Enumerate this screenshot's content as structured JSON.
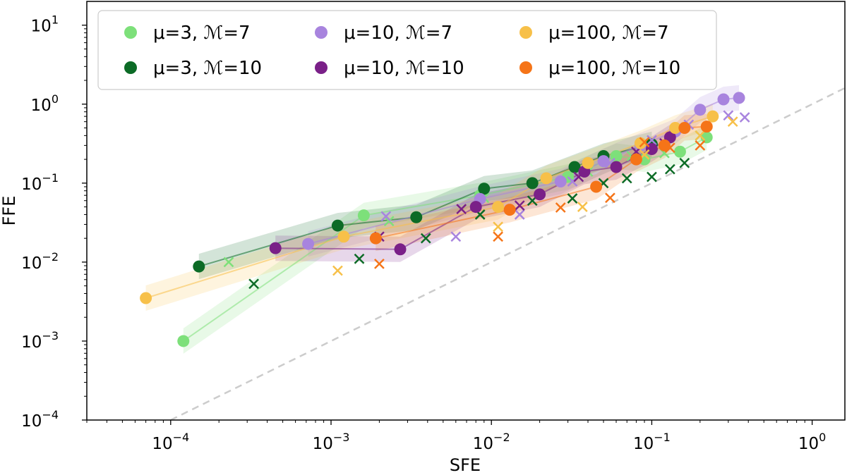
{
  "chart_data": {
    "type": "scatter",
    "xlabel": "SFE",
    "ylabel": "FFE",
    "xscale": "log",
    "yscale": "log",
    "xlim": [
      3e-05,
      1.6
    ],
    "ylim": [
      0.0001,
      20
    ],
    "x_ticks": [
      {
        "value": 0.0001,
        "base": "10",
        "exp": "−4"
      },
      {
        "value": 0.001,
        "base": "10",
        "exp": "−3"
      },
      {
        "value": 0.01,
        "base": "10",
        "exp": "−2"
      },
      {
        "value": 0.1,
        "base": "10",
        "exp": "−1"
      },
      {
        "value": 1,
        "base": "10",
        "exp": "0"
      }
    ],
    "y_ticks": [
      {
        "value": 0.0001,
        "base": "10",
        "exp": "−4"
      },
      {
        "value": 0.001,
        "base": "10",
        "exp": "−3"
      },
      {
        "value": 0.01,
        "base": "10",
        "exp": "−2"
      },
      {
        "value": 0.1,
        "base": "10",
        "exp": "−1"
      },
      {
        "value": 1,
        "base": "10",
        "exp": "0"
      },
      {
        "value": 10,
        "base": "10",
        "exp": "1"
      }
    ],
    "grid": false,
    "legend_placement": "top-left",
    "reference_line": {
      "style": "dashed",
      "color": "#cccccc",
      "x": [
        0.0001,
        1.6
      ],
      "y": [
        0.0001,
        1.6
      ]
    },
    "series": [
      {
        "name": "μ=3, ℳ=7",
        "color": "#7de07a",
        "circles": [
          [
            0.00012,
            0.001
          ],
          [
            0.0016,
            0.039
          ],
          [
            0.0085,
            0.07
          ],
          [
            0.03,
            0.12
          ],
          [
            0.06,
            0.22
          ],
          [
            0.09,
            0.2
          ],
          [
            0.15,
            0.25
          ],
          [
            0.22,
            0.38
          ]
        ],
        "crosses": [
          [
            0.00023,
            0.01
          ],
          [
            0.0023,
            0.033
          ],
          [
            0.009,
            0.065
          ],
          [
            0.04,
            0.14
          ],
          [
            0.075,
            0.22
          ],
          [
            0.12,
            0.24
          ],
          [
            0.2,
            0.4
          ]
        ]
      },
      {
        "name": "μ=3, ℳ=10",
        "color": "#0c6b26",
        "circles": [
          [
            0.00015,
            0.0088
          ],
          [
            0.0011,
            0.029
          ],
          [
            0.0034,
            0.037
          ],
          [
            0.009,
            0.085
          ],
          [
            0.018,
            0.1
          ],
          [
            0.033,
            0.16
          ],
          [
            0.05,
            0.22
          ],
          [
            0.1,
            0.31
          ]
        ],
        "crosses": [
          [
            0.00033,
            0.0053
          ],
          [
            0.0015,
            0.011
          ],
          [
            0.0039,
            0.02
          ],
          [
            0.0085,
            0.04
          ],
          [
            0.018,
            0.06
          ],
          [
            0.032,
            0.064
          ],
          [
            0.05,
            0.1
          ],
          [
            0.07,
            0.115
          ],
          [
            0.1,
            0.12
          ],
          [
            0.13,
            0.15
          ],
          [
            0.16,
            0.18
          ]
        ]
      },
      {
        "name": "μ=10, ℳ=7",
        "color": "#a884de",
        "circles": [
          [
            0.00072,
            0.017
          ],
          [
            0.0085,
            0.063
          ],
          [
            0.027,
            0.105
          ],
          [
            0.05,
            0.19
          ],
          [
            0.085,
            0.3
          ],
          [
            0.14,
            0.45
          ],
          [
            0.2,
            0.85
          ],
          [
            0.28,
            1.15
          ],
          [
            0.35,
            1.2
          ]
        ],
        "crosses": [
          [
            0.0022,
            0.038
          ],
          [
            0.006,
            0.021
          ],
          [
            0.015,
            0.04
          ],
          [
            0.032,
            0.105
          ],
          [
            0.055,
            0.18
          ],
          [
            0.1,
            0.35
          ],
          [
            0.17,
            0.55
          ],
          [
            0.3,
            0.72
          ],
          [
            0.38,
            0.68
          ]
        ]
      },
      {
        "name": "μ=10, ℳ=10",
        "color": "#7a2088",
        "circles": [
          [
            0.00045,
            0.015
          ],
          [
            0.0027,
            0.0145
          ],
          [
            0.008,
            0.05
          ],
          [
            0.02,
            0.072
          ],
          [
            0.038,
            0.14
          ],
          [
            0.06,
            0.16
          ],
          [
            0.1,
            0.27
          ],
          [
            0.13,
            0.38
          ]
        ],
        "crosses": [
          [
            0.002,
            0.021
          ],
          [
            0.0065,
            0.047
          ],
          [
            0.015,
            0.052
          ],
          [
            0.035,
            0.12
          ],
          [
            0.08,
            0.25
          ],
          [
            0.12,
            0.32
          ]
        ]
      },
      {
        "name": "μ=100, ℳ=7",
        "color": "#f7c049",
        "circles": [
          [
            7e-05,
            0.0035
          ],
          [
            0.0012,
            0.021
          ],
          [
            0.011,
            0.05
          ],
          [
            0.022,
            0.115
          ],
          [
            0.04,
            0.18
          ],
          [
            0.085,
            0.32
          ],
          [
            0.14,
            0.5
          ],
          [
            0.24,
            0.7
          ]
        ],
        "crosses": [
          [
            0.0011,
            0.0078
          ],
          [
            0.011,
            0.028
          ],
          [
            0.037,
            0.05
          ],
          [
            0.09,
            0.23
          ],
          [
            0.2,
            0.4
          ],
          [
            0.32,
            0.6
          ]
        ]
      },
      {
        "name": "μ=100, ℳ=10",
        "color": "#f57418",
        "circles": [
          [
            0.0019,
            0.02
          ],
          [
            0.013,
            0.046
          ],
          [
            0.045,
            0.09
          ],
          [
            0.08,
            0.2
          ],
          [
            0.12,
            0.3
          ],
          [
            0.16,
            0.5
          ],
          [
            0.22,
            0.52
          ]
        ],
        "crosses": [
          [
            0.002,
            0.0095
          ],
          [
            0.011,
            0.021
          ],
          [
            0.027,
            0.049
          ],
          [
            0.055,
            0.065
          ],
          [
            0.09,
            0.33
          ],
          [
            0.13,
            0.28
          ],
          [
            0.2,
            0.3
          ]
        ]
      }
    ]
  }
}
